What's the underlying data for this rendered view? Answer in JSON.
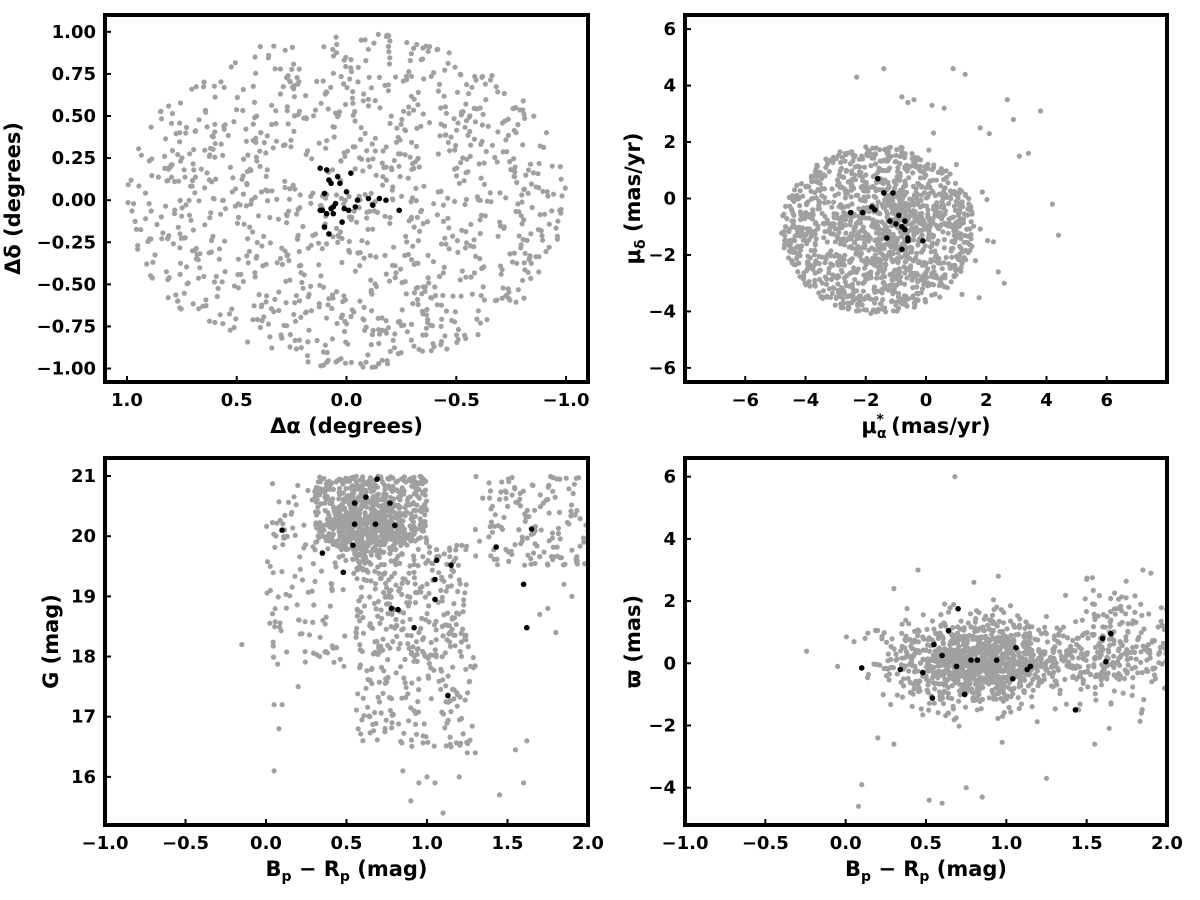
{
  "colors": {
    "background_points": "#a0a0a0",
    "member_points": "#000000",
    "frame": "#000000"
  },
  "chart_data": [
    {
      "id": "position",
      "type": "scatter",
      "xlabel": "Δα (degrees)",
      "ylabel": "Δδ (degrees)",
      "xlim": [
        1.1,
        -1.1
      ],
      "ylim": [
        -1.08,
        1.1
      ],
      "x_inverted": true,
      "xticks": [
        1.0,
        0.5,
        0.0,
        -0.5,
        -1.0
      ],
      "xtick_labels": [
        "1.0",
        "0.5",
        "0.0",
        "−0.5",
        "−1.0"
      ],
      "yticks": [
        1.0,
        0.75,
        0.5,
        0.25,
        0.0,
        -0.25,
        -0.5,
        -0.75,
        -1.0
      ],
      "ytick_labels": [
        "1.00",
        "0.75",
        "0.50",
        "0.25",
        "0.00",
        "−0.25",
        "−0.50",
        "−0.75",
        "−1.00"
      ],
      "grid": false,
      "series": [
        {
          "role": "field",
          "color": "#a0a0a0",
          "generator": "disk",
          "count": 1100,
          "cx": 0.0,
          "cy": 0.0,
          "rx": 1.0,
          "ry": 1.0,
          "seed": 11
        },
        {
          "role": "members",
          "color": "#000000",
          "x": [
            0.12,
            0.09,
            0.08,
            0.07,
            0.11,
            0.06,
            0.05,
            0.02,
            0.0,
            -0.02,
            -0.05,
            -0.1,
            -0.12,
            -0.15,
            -0.18,
            -0.24,
            0.12,
            0.1,
            0.1,
            0.08,
            0.06,
            0.04,
            0.01,
            -0.01,
            -0.04,
            0.07,
            0.09,
            0.03
          ],
          "y": [
            0.19,
            0.18,
            0.12,
            0.1,
            -0.06,
            -0.04,
            -0.02,
            -0.13,
            0.05,
            0.16,
            0.0,
            0.01,
            -0.03,
            0.01,
            0.0,
            -0.06,
            -0.06,
            0.04,
            -0.16,
            -0.2,
            -0.08,
            0.14,
            -0.05,
            -0.06,
            -0.04,
            -0.05,
            -0.08,
            0.1
          ]
        }
      ]
    },
    {
      "id": "proper-motion",
      "type": "scatter",
      "xlabel": "μ_α* (mas/yr)",
      "ylabel": "μ_δ (mas/yr)",
      "xlim": [
        -8,
        8
      ],
      "ylim": [
        -6.5,
        6.5
      ],
      "xticks": [
        -6,
        -4,
        -2,
        0,
        2,
        4,
        6
      ],
      "xtick_labels": [
        "−6",
        "−4",
        "−2",
        "0",
        "2",
        "4",
        "6"
      ],
      "yticks": [
        6,
        4,
        2,
        0,
        -2,
        -4,
        -6
      ],
      "ytick_labels": [
        "6",
        "4",
        "2",
        "0",
        "−2",
        "−4",
        "−6"
      ],
      "grid": false,
      "series": [
        {
          "role": "field",
          "color": "#a0a0a0",
          "generator": "disk",
          "count": 1200,
          "cx": -1.6,
          "cy": -1.1,
          "rx": 3.2,
          "ry": 3.0,
          "seed": 23
        },
        {
          "role": "field",
          "color": "#a0a0a0",
          "generator": "gauss",
          "count": 250,
          "cx": -0.6,
          "cy": -0.9,
          "sx": 1.0,
          "sy": 1.0,
          "seed": 29
        },
        {
          "role": "field",
          "color": "#a0a0a0",
          "x": [
            -1.4,
            -0.8,
            -0.4,
            0.2,
            0.6,
            0.9,
            1.3,
            1.8,
            2.1,
            2.7,
            2.9,
            3.1,
            3.4,
            3.8,
            4.2,
            4.4,
            2.4,
            2.6,
            1.2,
            -0.6,
            -2.3
          ],
          "y": [
            4.6,
            3.6,
            3.5,
            3.3,
            3.2,
            4.6,
            4.4,
            2.5,
            2.3,
            3.5,
            2.8,
            1.5,
            1.6,
            3.1,
            -0.2,
            -1.3,
            -2.6,
            -3.0,
            -2.3,
            3.4,
            4.3
          ]
        },
        {
          "role": "members",
          "color": "#000000",
          "x": [
            -1.6,
            -1.4,
            -1.1,
            -1.8,
            -0.9,
            -0.7,
            -2.1,
            -1.0,
            -0.8,
            -0.6,
            -1.3,
            -0.7,
            -1.7,
            -0.1,
            -1.2,
            -0.8,
            -0.6,
            -2.5
          ],
          "y": [
            0.7,
            0.2,
            0.2,
            -0.3,
            -0.6,
            -0.8,
            -0.5,
            -0.9,
            -1.0,
            -1.4,
            -1.4,
            -1.1,
            -0.4,
            -1.5,
            -0.8,
            -1.8,
            -1.5,
            -0.5
          ]
        }
      ]
    },
    {
      "id": "cmd",
      "type": "scatter",
      "xlabel": "Bp − Rp (mag)",
      "ylabel": "G (mag)",
      "xlim": [
        -1.0,
        2.0
      ],
      "ylim": [
        15.2,
        21.3
      ],
      "y_inverted": true,
      "xticks": [
        -1.0,
        -0.5,
        0.0,
        0.5,
        1.0,
        1.5,
        2.0
      ],
      "xtick_labels": [
        "−1.0",
        "−0.5",
        "0.0",
        "0.5",
        "1.0",
        "1.5",
        "2.0"
      ],
      "yticks": [
        21,
        20,
        19,
        18,
        17,
        16
      ],
      "ytick_labels": [
        "21",
        "20",
        "19",
        "18",
        "17",
        "16"
      ],
      "grid": false,
      "series": [
        {
          "role": "field",
          "color": "#a0a0a0",
          "generator": "box",
          "count": 520,
          "x0": 0.3,
          "x1": 1.0,
          "y0": 19.9,
          "y1": 21.0,
          "seed": 31
        },
        {
          "role": "field",
          "color": "#a0a0a0",
          "generator": "gauss",
          "count": 260,
          "cx": 0.62,
          "cy": 20.1,
          "sx": 0.1,
          "sy": 0.3,
          "seed": 37
        },
        {
          "role": "field",
          "color": "#a0a0a0",
          "generator": "box",
          "count": 260,
          "x0": 0.55,
          "x1": 1.25,
          "y0": 18.0,
          "y1": 19.9,
          "seed": 41
        },
        {
          "role": "field",
          "color": "#a0a0a0",
          "generator": "box",
          "count": 150,
          "x0": 0.55,
          "x1": 1.3,
          "y0": 16.5,
          "y1": 18.2,
          "seed": 43
        },
        {
          "role": "field",
          "color": "#a0a0a0",
          "generator": "box",
          "count": 140,
          "x0": 1.3,
          "x1": 2.0,
          "y0": 19.5,
          "y1": 21.0,
          "seed": 47
        },
        {
          "role": "field",
          "color": "#a0a0a0",
          "generator": "box",
          "count": 120,
          "x0": 0.0,
          "x1": 0.5,
          "y0": 17.8,
          "y1": 21.0,
          "seed": 53
        },
        {
          "role": "field",
          "color": "#a0a0a0",
          "x": [
            -0.15,
            0.05,
            0.08,
            0.1,
            0.2,
            0.05,
            0.9,
            0.95,
            1.0,
            1.05,
            1.1,
            1.15,
            1.2,
            1.25,
            1.3,
            1.45,
            1.55,
            1.6,
            1.62,
            1.7,
            1.75,
            1.8,
            1.85,
            1.9,
            0.85,
            0.78,
            0.92
          ],
          "y": [
            18.2,
            17.2,
            16.8,
            17.2,
            17.5,
            16.1,
            15.6,
            15.9,
            16.0,
            15.9,
            15.4,
            16.5,
            16.0,
            16.4,
            16.4,
            15.7,
            16.45,
            15.9,
            16.6,
            18.7,
            18.8,
            18.4,
            19.2,
            19.0,
            16.1,
            17.3,
            17.1
          ]
        },
        {
          "role": "members",
          "color": "#000000",
          "x": [
            0.69,
            0.1,
            0.55,
            0.62,
            0.55,
            0.68,
            0.77,
            0.8,
            0.54,
            0.35,
            0.48,
            1.06,
            1.15,
            1.05,
            1.05,
            0.78,
            0.82,
            0.92,
            1.13,
            1.43,
            1.6,
            1.65,
            1.62
          ],
          "y": [
            20.95,
            20.1,
            20.55,
            20.65,
            20.2,
            20.2,
            20.55,
            20.18,
            19.85,
            19.72,
            19.4,
            19.6,
            19.52,
            19.28,
            18.95,
            18.8,
            18.78,
            18.48,
            17.35,
            19.82,
            19.2,
            20.12,
            18.48
          ]
        }
      ]
    },
    {
      "id": "parallax",
      "type": "scatter",
      "xlabel": "Bp − Rp (mag)",
      "ylabel": "ϖ (mas)",
      "xlim": [
        -1.0,
        2.0
      ],
      "ylim": [
        -5.2,
        6.6
      ],
      "xticks": [
        -1.0,
        -0.5,
        0.0,
        0.5,
        1.0,
        1.5,
        2.0
      ],
      "xtick_labels": [
        "−1.0",
        "−0.5",
        "0.0",
        "0.5",
        "1.0",
        "1.5",
        "2.0"
      ],
      "yticks": [
        6,
        4,
        2,
        0,
        -2,
        -4
      ],
      "ytick_labels": [
        "6",
        "4",
        "2",
        "0",
        "−2",
        "−4"
      ],
      "grid": false,
      "series": [
        {
          "role": "field",
          "color": "#a0a0a0",
          "generator": "gauss",
          "count": 1000,
          "cx": 0.8,
          "cy": 0.05,
          "sx": 0.26,
          "sy": 0.7,
          "seed": 61
        },
        {
          "role": "field",
          "color": "#a0a0a0",
          "generator": "gauss",
          "count": 260,
          "cx": 1.65,
          "cy": 0.35,
          "sx": 0.2,
          "sy": 0.9,
          "seed": 67
        },
        {
          "role": "field",
          "color": "#a0a0a0",
          "generator": "gauss",
          "count": 140,
          "cx": 1.15,
          "cy": 0.0,
          "sx": 0.35,
          "sy": 0.3,
          "seed": 71
        },
        {
          "role": "field",
          "color": "#a0a0a0",
          "x": [
            0.68,
            0.1,
            0.08,
            -0.05,
            0.3,
            0.45,
            0.52,
            0.95,
            1.25,
            1.85,
            1.9,
            1.5,
            1.55,
            1.45,
            0.75,
            0.85,
            0.6,
            0.3,
            0.2
          ],
          "y": [
            6.0,
            -3.9,
            -4.6,
            -0.1,
            2.4,
            3.0,
            -4.4,
            2.8,
            -3.7,
            3.0,
            2.9,
            2.7,
            -2.6,
            -1.5,
            -4.0,
            -4.3,
            -4.5,
            -2.6,
            -2.4
          ]
        },
        {
          "role": "members",
          "color": "#000000",
          "x": [
            0.1,
            0.34,
            0.48,
            0.54,
            0.55,
            0.6,
            0.64,
            0.7,
            0.69,
            0.74,
            0.78,
            0.82,
            0.94,
            1.06,
            1.04,
            1.13,
            1.15,
            1.43,
            1.6,
            1.65,
            1.62
          ],
          "y": [
            -0.15,
            -0.2,
            -0.3,
            -1.12,
            0.6,
            0.25,
            1.05,
            1.75,
            -0.1,
            -1.0,
            0.1,
            0.1,
            0.1,
            0.5,
            -0.5,
            -0.2,
            -0.1,
            -1.5,
            0.8,
            0.95,
            0.05
          ]
        }
      ]
    }
  ]
}
